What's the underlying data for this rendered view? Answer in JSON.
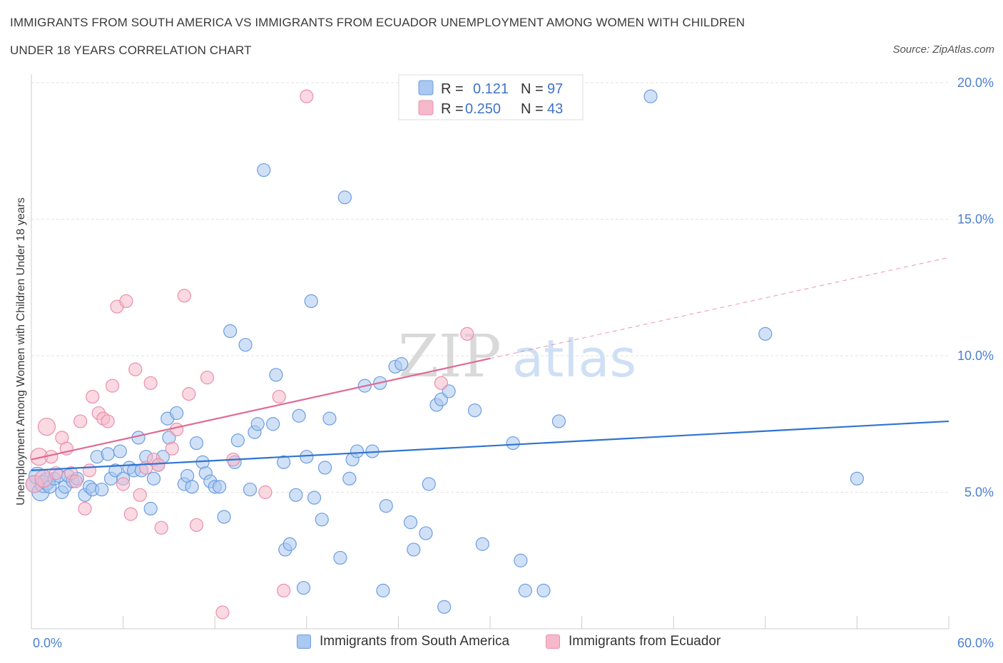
{
  "header": {
    "title_line1": "IMMIGRANTS FROM SOUTH AMERICA VS IMMIGRANTS FROM ECUADOR UNEMPLOYMENT AMONG WOMEN WITH CHILDREN",
    "title_line2": "UNDER 18 YEARS CORRELATION CHART",
    "source": "Source: ZipAtlas.com"
  },
  "watermark": {
    "zip": "ZIP",
    "atlas": "atlas"
  },
  "colors": {
    "blue_fill": "#aac8f0",
    "blue_stroke": "#6d9de0",
    "blue_line": "#2f74d0",
    "pink_fill": "#f5b9cb",
    "pink_stroke": "#ea8fab",
    "pink_line": "#e06a93",
    "grid": "#e2e2e2",
    "tick_text": "#4a7fd1"
  },
  "legend": {
    "rows": [
      {
        "r_label": "R =",
        "r_value": "0.121",
        "n_label": "N =",
        "n_value": "97"
      },
      {
        "r_label": "R =",
        "r_value": "0.250",
        "n_label": "N =",
        "n_value": "43"
      }
    ]
  },
  "bottom_legend": {
    "blue_label": "Immigrants from South America",
    "pink_label": "Immigrants from Ecuador"
  },
  "chart_data": {
    "type": "scatter",
    "title": "IMMIGRANTS FROM SOUTH AMERICA VS IMMIGRANTS FROM ECUADOR UNEMPLOYMENT AMONG WOMEN WITH CHILDREN UNDER 18 YEARS CORRELATION CHART",
    "xlabel": "",
    "ylabel": "Unemployment Among Women with Children Under 18 years",
    "xlim": [
      0,
      60
    ],
    "ylim": [
      0,
      20
    ],
    "x_tick_labels": {
      "min": "0.0%",
      "max": "60.0%"
    },
    "y_ticks": [
      {
        "value": 5,
        "label": "5.0%"
      },
      {
        "value": 10,
        "label": "10.0%"
      },
      {
        "value": 15,
        "label": "15.0%"
      },
      {
        "value": 20,
        "label": "20.0%"
      }
    ],
    "grid": true,
    "legend_position": "top-center",
    "series": [
      {
        "name": "Immigrants from South America",
        "r": 0.121,
        "n": 97,
        "trend": {
          "x": [
            0,
            60
          ],
          "y": [
            5.8,
            7.6
          ]
        },
        "points": [
          [
            0.2,
            5.3
          ],
          [
            0.4,
            5.6
          ],
          [
            0.6,
            5.0
          ],
          [
            0.8,
            5.3
          ],
          [
            1.0,
            5.4
          ],
          [
            1.2,
            5.2
          ],
          [
            1.5,
            5.5
          ],
          [
            1.8,
            5.6
          ],
          [
            2.0,
            5.0
          ],
          [
            2.2,
            5.2
          ],
          [
            2.4,
            5.6
          ],
          [
            2.7,
            5.4
          ],
          [
            3.0,
            5.5
          ],
          [
            3.5,
            4.9
          ],
          [
            3.8,
            5.2
          ],
          [
            4.0,
            5.1
          ],
          [
            4.3,
            6.3
          ],
          [
            4.6,
            5.1
          ],
          [
            5.0,
            6.4
          ],
          [
            5.2,
            5.5
          ],
          [
            5.5,
            5.8
          ],
          [
            5.8,
            6.5
          ],
          [
            6.0,
            5.5
          ],
          [
            6.4,
            5.9
          ],
          [
            6.7,
            5.8
          ],
          [
            7.0,
            7.0
          ],
          [
            7.2,
            5.8
          ],
          [
            7.5,
            6.3
          ],
          [
            7.8,
            4.4
          ],
          [
            8.0,
            5.5
          ],
          [
            8.3,
            6.0
          ],
          [
            8.6,
            6.3
          ],
          [
            8.9,
            7.7
          ],
          [
            9.0,
            7.0
          ],
          [
            9.5,
            7.9
          ],
          [
            10.0,
            5.3
          ],
          [
            10.2,
            5.6
          ],
          [
            10.5,
            5.2
          ],
          [
            10.8,
            6.8
          ],
          [
            11.2,
            6.1
          ],
          [
            11.4,
            5.7
          ],
          [
            11.7,
            5.4
          ],
          [
            12.0,
            5.2
          ],
          [
            12.3,
            5.2
          ],
          [
            12.6,
            4.1
          ],
          [
            13.0,
            10.9
          ],
          [
            13.3,
            6.1
          ],
          [
            13.5,
            6.9
          ],
          [
            14.0,
            10.4
          ],
          [
            14.3,
            5.1
          ],
          [
            14.6,
            7.2
          ],
          [
            14.8,
            7.5
          ],
          [
            15.2,
            16.8
          ],
          [
            15.8,
            7.5
          ],
          [
            16.0,
            9.3
          ],
          [
            16.5,
            6.1
          ],
          [
            16.6,
            2.9
          ],
          [
            16.9,
            3.1
          ],
          [
            17.3,
            4.9
          ],
          [
            17.5,
            7.8
          ],
          [
            17.8,
            1.5
          ],
          [
            18.0,
            6.3
          ],
          [
            18.3,
            12.0
          ],
          [
            18.5,
            4.8
          ],
          [
            19.0,
            4.0
          ],
          [
            19.2,
            5.9
          ],
          [
            19.5,
            7.7
          ],
          [
            20.2,
            2.6
          ],
          [
            20.5,
            15.8
          ],
          [
            20.8,
            5.5
          ],
          [
            21.0,
            6.2
          ],
          [
            21.3,
            6.5
          ],
          [
            21.8,
            8.9
          ],
          [
            22.3,
            6.5
          ],
          [
            22.8,
            9.0
          ],
          [
            23.0,
            1.4
          ],
          [
            23.2,
            4.5
          ],
          [
            23.8,
            9.6
          ],
          [
            24.2,
            9.7
          ],
          [
            24.8,
            3.9
          ],
          [
            25.0,
            2.9
          ],
          [
            25.8,
            3.5
          ],
          [
            26.0,
            5.3
          ],
          [
            26.5,
            8.2
          ],
          [
            26.8,
            8.4
          ],
          [
            27.0,
            0.8
          ],
          [
            27.3,
            8.7
          ],
          [
            29.0,
            8.0
          ],
          [
            29.5,
            3.1
          ],
          [
            31.5,
            6.8
          ],
          [
            32.0,
            2.5
          ],
          [
            32.3,
            1.4
          ],
          [
            33.5,
            1.4
          ],
          [
            34.5,
            7.6
          ],
          [
            40.5,
            19.5
          ],
          [
            48.0,
            10.8
          ],
          [
            54.0,
            5.5
          ]
        ]
      },
      {
        "name": "Immigrants from Ecuador",
        "r": 0.25,
        "n": 43,
        "trend": {
          "x": [
            0,
            30
          ],
          "y": [
            6.2,
            9.9
          ]
        },
        "trend_extension": {
          "x": [
            30,
            60
          ],
          "y": [
            9.9,
            13.6
          ]
        },
        "points": [
          [
            0.2,
            5.3
          ],
          [
            0.5,
            6.3
          ],
          [
            0.8,
            5.5
          ],
          [
            1.0,
            7.4
          ],
          [
            1.3,
            6.3
          ],
          [
            1.6,
            5.7
          ],
          [
            2.0,
            7.0
          ],
          [
            2.3,
            6.6
          ],
          [
            2.6,
            5.7
          ],
          [
            2.9,
            5.4
          ],
          [
            3.2,
            7.6
          ],
          [
            3.5,
            4.4
          ],
          [
            3.8,
            5.8
          ],
          [
            4.0,
            8.5
          ],
          [
            4.4,
            7.9
          ],
          [
            4.7,
            7.7
          ],
          [
            5.0,
            7.6
          ],
          [
            5.3,
            8.9
          ],
          [
            5.6,
            11.8
          ],
          [
            6.0,
            5.3
          ],
          [
            6.2,
            12.0
          ],
          [
            6.5,
            4.2
          ],
          [
            6.8,
            9.5
          ],
          [
            7.1,
            4.9
          ],
          [
            7.5,
            5.9
          ],
          [
            7.8,
            9.0
          ],
          [
            8.0,
            6.2
          ],
          [
            8.3,
            6.0
          ],
          [
            8.5,
            3.7
          ],
          [
            9.2,
            6.6
          ],
          [
            9.5,
            7.3
          ],
          [
            10.0,
            12.2
          ],
          [
            10.3,
            8.6
          ],
          [
            10.8,
            3.8
          ],
          [
            11.5,
            9.2
          ],
          [
            12.5,
            0.6
          ],
          [
            13.2,
            6.2
          ],
          [
            15.3,
            5.0
          ],
          [
            16.2,
            8.5
          ],
          [
            16.5,
            1.4
          ],
          [
            18.0,
            19.5
          ],
          [
            26.8,
            9.0
          ],
          [
            28.5,
            10.8
          ]
        ]
      }
    ]
  }
}
